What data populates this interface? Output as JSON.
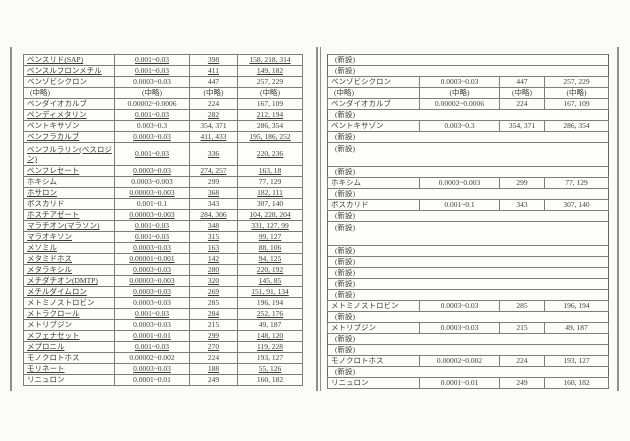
{
  "colors": {
    "background": "#fbfbf9",
    "text": "#3d3d3d",
    "table_border": "#7d7d7d",
    "page_rule": "#8f8f8f"
  },
  "labels": {
    "new_entry": "(新設)",
    "omitted": "(中略)"
  },
  "amended_table": {
    "rows": [
      {
        "cells": [
          "ベンスリド(SAP)",
          "0.001~0.03",
          "398",
          "158, 218, 314"
        ],
        "u": true
      },
      {
        "cells": [
          "ベンスルフロンメチル",
          "0.001~0.03",
          "411",
          "149, 182"
        ],
        "u": true
      },
      {
        "cells": [
          "ベンゾビシクロン",
          "0.0003~0.03",
          "447",
          "257, 229"
        ]
      },
      {
        "cells": [
          "(中略)",
          "(中略)",
          "(中略)",
          "(中略)"
        ],
        "center_name": true
      },
      {
        "cells": [
          "ベンダイオカルブ",
          "0.00002~0.0006",
          "224",
          "167, 109"
        ]
      },
      {
        "cells": [
          "ペンディメタリン",
          "0.001~0.03",
          "282",
          "212, 194"
        ],
        "u": true
      },
      {
        "cells": [
          "ペントキサゾン",
          "0.003~0.3",
          "354, 371",
          "286, 354"
        ]
      },
      {
        "cells": [
          "ベンフラカルブ",
          "0.0003~0.03",
          "411, 433",
          "195, 186, 252"
        ],
        "u": true
      },
      {
        "cells": [
          "ベンフルラリン(ベスロジン)",
          "0.001~0.03",
          "336",
          "220, 236"
        ],
        "u": true,
        "h": 2
      },
      {
        "cells": [
          "ベンフレセート",
          "0.0003~0.03",
          "274, 257",
          "163, 18"
        ],
        "u": true
      },
      {
        "cells": [
          "ホキシム",
          "0.0003~0.003",
          "299",
          "77, 129"
        ]
      },
      {
        "cells": [
          "ホサロン",
          "0.00003~0.003",
          "368",
          "182, 111"
        ],
        "u": true
      },
      {
        "cells": [
          "ボスカリド",
          "0.001~0.1",
          "343",
          "307, 140"
        ]
      },
      {
        "cells": [
          "ホスチアゼート",
          "0.00003~0.003",
          "284, 306",
          "104, 228, 204"
        ],
        "u": true
      },
      {
        "cells": [
          "マラチオン(マラソン)",
          "0.001~0.03",
          "348",
          "331, 127, 99"
        ],
        "u": true
      },
      {
        "cells": [
          "マラオキソン",
          "0.001~0.03",
          "315",
          "99, 127"
        ],
        "u": true
      },
      {
        "cells": [
          "メソミル",
          "0.0003~0.03",
          "163",
          "88, 106"
        ],
        "u": true
      },
      {
        "cells": [
          "メタミドホス",
          "0.00001~0.001",
          "142",
          "94, 125"
        ],
        "u": true
      },
      {
        "cells": [
          "メタラキシル",
          "0.0003~0.03",
          "280",
          "220, 192"
        ],
        "u": true
      },
      {
        "cells": [
          "メチダチオン(DMTP)",
          "0.00003~0.003",
          "320",
          "145, 85"
        ],
        "u": true
      },
      {
        "cells": [
          "メチルダイムロン",
          "0.0003~0.03",
          "269",
          "151, 91, 134"
        ],
        "u": true
      },
      {
        "cells": [
          "メトミノストロビン",
          "0.0003~0.03",
          "285",
          "196, 194"
        ]
      },
      {
        "cells": [
          "メトラクロール",
          "0.001~0.03",
          "284",
          "252, 176"
        ],
        "u": true
      },
      {
        "cells": [
          "メトリブジン",
          "0.0003~0.03",
          "215",
          "49, 187"
        ]
      },
      {
        "cells": [
          "メフェナセット",
          "0.0001~0.01",
          "299",
          "148, 120"
        ],
        "u": true
      },
      {
        "cells": [
          "メプロニル",
          "0.001~0.03",
          "270",
          "119, 228"
        ],
        "u": true
      },
      {
        "cells": [
          "モノクロトホス",
          "0.00002~0.002",
          "224",
          "193, 127"
        ]
      },
      {
        "cells": [
          "モリネート",
          "0.0003~0.03",
          "188",
          "55, 126"
        ],
        "u": true
      },
      {
        "cells": [
          "リニュロン",
          "0.0001~0.01",
          "249",
          "160, 182"
        ]
      }
    ]
  },
  "previous_table": {
    "rows": [
      {
        "label": "(新設)"
      },
      {
        "label": "(新設)"
      },
      {
        "cells": [
          "ベンゾビシクロン",
          "0.0003~0.03",
          "447",
          "257, 229"
        ]
      },
      {
        "cells": [
          "(中略)",
          "(中略)",
          "(中略)",
          "(中略)"
        ],
        "center_name": true
      },
      {
        "cells": [
          "ベンダイオカルブ",
          "0.00002~0.0006",
          "224",
          "167, 109"
        ]
      },
      {
        "label": "(新設)"
      },
      {
        "cells": [
          "ペントキサゾン",
          "0.003~0.3",
          "354, 371",
          "286, 354"
        ]
      },
      {
        "label": "(新設)"
      },
      {
        "label": "(新設)",
        "h": 2
      },
      {
        "label": "(新設)"
      },
      {
        "cells": [
          "ホキシム",
          "0.0003~0.003",
          "299",
          "77, 129"
        ]
      },
      {
        "label": "(新設)"
      },
      {
        "cells": [
          "ボスカリド",
          "0.001~0.1",
          "343",
          "307, 140"
        ]
      },
      {
        "label": "(新設)"
      },
      {
        "label": "(新設)",
        "h": 2
      },
      {
        "label": "(新設)"
      },
      {
        "label": "(新設)"
      },
      {
        "label": "(新設)"
      },
      {
        "label": "(新設)"
      },
      {
        "label": "(新設)"
      },
      {
        "cells": [
          "メトミノストロビン",
          "0.0003~0.03",
          "285",
          "196, 194"
        ]
      },
      {
        "label": "(新設)"
      },
      {
        "cells": [
          "メトリブジン",
          "0.0003~0.03",
          "215",
          "49, 187"
        ]
      },
      {
        "label": "(新設)"
      },
      {
        "label": "(新設)"
      },
      {
        "cells": [
          "モノクロトホス",
          "0.00002~0.002",
          "224",
          "193, 127"
        ]
      },
      {
        "label": "(新設)"
      },
      {
        "cells": [
          "リニュロン",
          "0.0001~0.01",
          "249",
          "160, 182"
        ]
      }
    ]
  }
}
